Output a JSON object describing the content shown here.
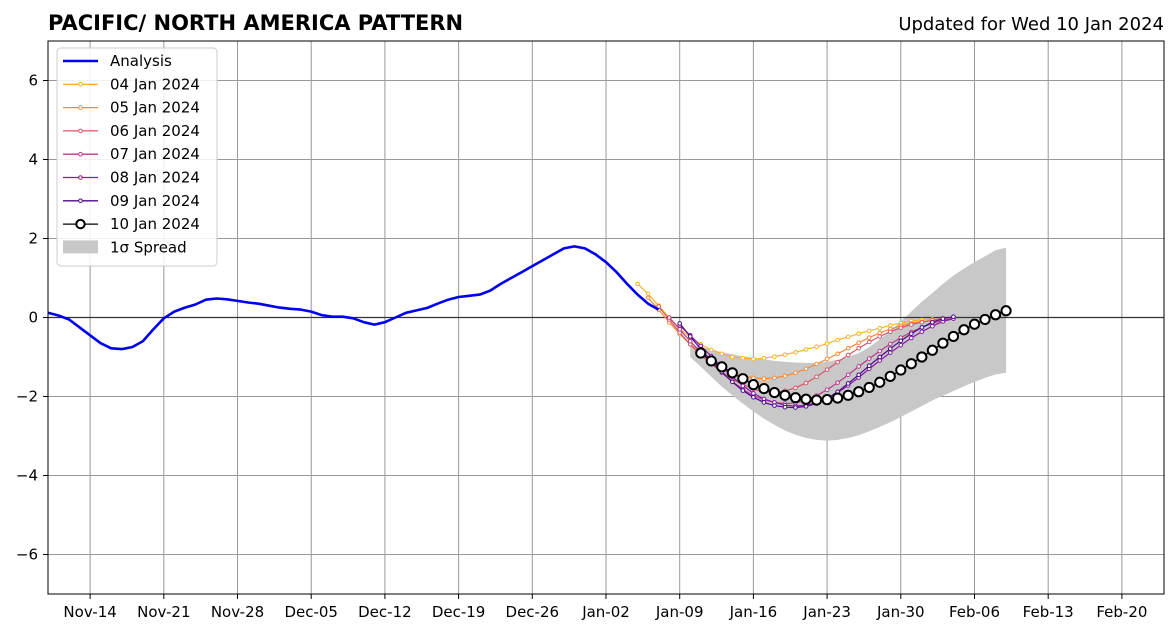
{
  "chart_data": {
    "type": "line",
    "title": "PACIFIC/ NORTH AMERICA PATTERN",
    "subtitle": "Updated for Wed 10 Jan 2024",
    "xlabel": "",
    "ylabel": "",
    "x_range": [
      "2023-11-10",
      "2024-02-24"
    ],
    "ylim": [
      -7,
      7
    ],
    "x_ticks": [
      {
        "date": "2023-11-14",
        "label": "Nov-14"
      },
      {
        "date": "2023-11-21",
        "label": "Nov-21"
      },
      {
        "date": "2023-11-28",
        "label": "Nov-28"
      },
      {
        "date": "2023-12-05",
        "label": "Dec-05"
      },
      {
        "date": "2023-12-12",
        "label": "Dec-12"
      },
      {
        "date": "2023-12-19",
        "label": "Dec-19"
      },
      {
        "date": "2023-12-26",
        "label": "Dec-26"
      },
      {
        "date": "2024-01-02",
        "label": "Jan-02"
      },
      {
        "date": "2024-01-09",
        "label": "Jan-09"
      },
      {
        "date": "2024-01-16",
        "label": "Jan-16"
      },
      {
        "date": "2024-01-23",
        "label": "Jan-23"
      },
      {
        "date": "2024-01-30",
        "label": "Jan-30"
      },
      {
        "date": "2024-02-06",
        "label": "Feb-06"
      },
      {
        "date": "2024-02-13",
        "label": "Feb-13"
      },
      {
        "date": "2024-02-20",
        "label": "Feb-20"
      }
    ],
    "y_ticks": [
      {
        "value": -6,
        "label": "−6"
      },
      {
        "value": -4,
        "label": "−4"
      },
      {
        "value": -2,
        "label": "−2"
      },
      {
        "value": 0,
        "label": "0"
      },
      {
        "value": 2,
        "label": "2"
      },
      {
        "value": 4,
        "label": "4"
      },
      {
        "value": 6,
        "label": "6"
      }
    ],
    "grid": true,
    "zero_line": true,
    "legend_position": "top-left",
    "colors": {
      "analysis": "#0000ee",
      "spread": "#c8c8c8",
      "grid": "#999999"
    },
    "analysis": {
      "name": "Analysis",
      "start": "2023-11-10",
      "values": [
        0.12,
        0.05,
        -0.05,
        -0.25,
        -0.45,
        -0.65,
        -0.78,
        -0.8,
        -0.75,
        -0.6,
        -0.3,
        -0.02,
        0.15,
        0.25,
        0.33,
        0.45,
        0.48,
        0.46,
        0.42,
        0.38,
        0.35,
        0.3,
        0.25,
        0.22,
        0.2,
        0.15,
        0.06,
        0.02,
        0.02,
        -0.02,
        -0.12,
        -0.18,
        -0.12,
        0.0,
        0.12,
        0.18,
        0.24,
        0.35,
        0.45,
        0.52,
        0.55,
        0.58,
        0.68,
        0.85,
        1.0,
        1.15,
        1.3,
        1.45,
        1.6,
        1.75,
        1.8,
        1.75,
        1.6,
        1.4,
        1.15,
        0.85,
        0.58,
        0.35,
        0.2
      ]
    },
    "spread": {
      "name": "1σ Spread",
      "start": "2024-01-10",
      "upper": [
        -0.7,
        -0.75,
        -0.8,
        -0.88,
        -0.93,
        -0.98,
        -1.02,
        -1.06,
        -1.1,
        -1.12,
        -1.14,
        -1.15,
        -1.15,
        -1.12,
        -1.07,
        -1.0,
        -0.9,
        -0.75,
        -0.55,
        -0.35,
        -0.1,
        0.15,
        0.4,
        0.62,
        0.85,
        1.06,
        1.24,
        1.4,
        1.55,
        1.7,
        1.77
      ],
      "lower": [
        -1.0,
        -1.25,
        -1.5,
        -1.75,
        -1.97,
        -2.18,
        -2.38,
        -2.56,
        -2.72,
        -2.86,
        -2.97,
        -3.05,
        -3.1,
        -3.12,
        -3.1,
        -3.05,
        -2.98,
        -2.88,
        -2.77,
        -2.65,
        -2.52,
        -2.38,
        -2.24,
        -2.1,
        -1.98,
        -1.86,
        -1.74,
        -1.63,
        -1.53,
        -1.44,
        -1.4
      ]
    },
    "series": [
      {
        "name": "04 Jan 2024",
        "color": "#f7b42a",
        "start": "2024-01-05",
        "values": [
          0.85,
          0.6,
          0.3,
          0.0,
          -0.28,
          -0.5,
          -0.68,
          -0.82,
          -0.92,
          -1.0,
          -1.03,
          -1.05,
          -1.03,
          -0.99,
          -0.94,
          -0.88,
          -0.81,
          -0.74,
          -0.66,
          -0.57,
          -0.49,
          -0.41,
          -0.34,
          -0.27,
          -0.2,
          -0.14,
          -0.09,
          -0.06,
          -0.05,
          -0.04
        ]
      },
      {
        "name": "05 Jan 2024",
        "color": "#f28a3a",
        "start": "2024-01-06",
        "values": [
          0.5,
          0.2,
          -0.12,
          -0.42,
          -0.68,
          -0.9,
          -1.1,
          -1.25,
          -1.38,
          -1.47,
          -1.53,
          -1.55,
          -1.53,
          -1.48,
          -1.4,
          -1.3,
          -1.18,
          -1.05,
          -0.92,
          -0.78,
          -0.64,
          -0.51,
          -0.39,
          -0.29,
          -0.21,
          -0.15,
          -0.11,
          -0.08,
          -0.06
        ]
      },
      {
        "name": "06 Jan 2024",
        "color": "#d9566a",
        "start": "2024-01-07",
        "values": [
          0.28,
          -0.05,
          -0.38,
          -0.68,
          -0.95,
          -1.18,
          -1.38,
          -1.56,
          -1.7,
          -1.81,
          -1.88,
          -1.9,
          -1.86,
          -1.78,
          -1.66,
          -1.5,
          -1.32,
          -1.13,
          -0.95,
          -0.78,
          -0.62,
          -0.48,
          -0.36,
          -0.26,
          -0.18,
          -0.12,
          -0.07,
          -0.02,
          0.0
        ]
      },
      {
        "name": "07 Jan 2024",
        "color": "#b63b8a",
        "start": "2024-01-08",
        "values": [
          0.0,
          -0.3,
          -0.6,
          -0.88,
          -1.15,
          -1.4,
          -1.62,
          -1.82,
          -1.98,
          -2.08,
          -2.15,
          -2.18,
          -2.16,
          -2.1,
          -1.98,
          -1.83,
          -1.65,
          -1.45,
          -1.24,
          -1.04,
          -0.85,
          -0.67,
          -0.51,
          -0.37,
          -0.25,
          -0.15,
          -0.07,
          -0.02
        ]
      },
      {
        "name": "08 Jan 2024",
        "color": "#8a18a8",
        "start": "2024-01-09",
        "values": [
          -0.2,
          -0.45,
          -0.72,
          -0.98,
          -1.25,
          -1.5,
          -1.73,
          -1.92,
          -2.06,
          -2.15,
          -2.22,
          -2.24,
          -2.22,
          -2.16,
          -2.05,
          -1.9,
          -1.72,
          -1.52,
          -1.3,
          -1.09,
          -0.89,
          -0.7,
          -0.52,
          -0.36,
          -0.22,
          -0.1,
          -0.03
        ]
      },
      {
        "name": "09 Jan 2024",
        "color": "#4b0a8a",
        "start": "2024-01-09",
        "values": [
          -0.15,
          -0.48,
          -0.8,
          -1.1,
          -1.38,
          -1.63,
          -1.85,
          -2.02,
          -2.15,
          -2.23,
          -2.27,
          -2.28,
          -2.25,
          -2.18,
          -2.05,
          -1.88,
          -1.67,
          -1.45,
          -1.22,
          -1.0,
          -0.79,
          -0.59,
          -0.41,
          -0.25,
          -0.12,
          -0.03,
          0.02
        ]
      },
      {
        "name": "10 Jan 2024",
        "color": "#000000",
        "start": "2024-01-11",
        "values": [
          -0.9,
          -1.1,
          -1.25,
          -1.4,
          -1.55,
          -1.7,
          -1.8,
          -1.9,
          -1.97,
          -2.03,
          -2.07,
          -2.09,
          -2.08,
          -2.04,
          -1.97,
          -1.88,
          -1.77,
          -1.64,
          -1.49,
          -1.33,
          -1.17,
          -1.0,
          -0.83,
          -0.65,
          -0.48,
          -0.31,
          -0.17,
          -0.05,
          0.07,
          0.17
        ]
      }
    ]
  }
}
